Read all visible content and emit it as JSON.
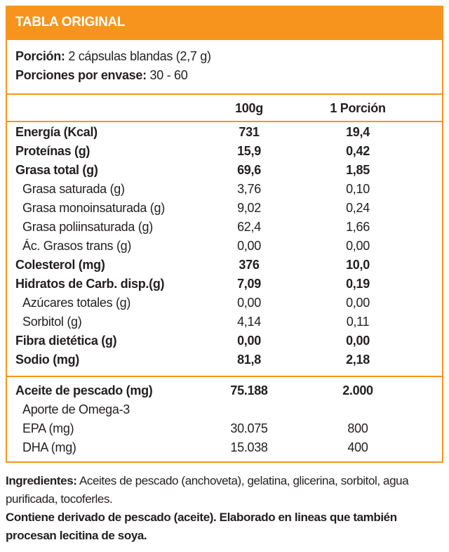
{
  "header": {
    "title": "TABLA ORIGINAL"
  },
  "portion": {
    "label": "Porción:",
    "value": "2 cápsulas blandas (2,7 g)"
  },
  "servings": {
    "label": "Porciones por envase:",
    "value": "30 - 60"
  },
  "table": {
    "columns": [
      "100g",
      "1 Porción"
    ],
    "rows": [
      [
        "Energía (Kcal)",
        "731",
        "19,4"
      ],
      [
        "Proteínas (g)",
        "15,9",
        "0,42"
      ],
      [
        "Grasa total (g)",
        "69,6",
        "1,85"
      ],
      [
        "Grasa saturada (g)",
        "3,76",
        "0,10"
      ],
      [
        "Grasa monoinsaturada (g)",
        "9,02",
        "0,24"
      ],
      [
        "Grasa poliinsaturada (g)",
        "62,4",
        "1,66"
      ],
      [
        "Ác. Grasos trans (g)",
        "0,00",
        "0,00"
      ],
      [
        "Colesterol (mg)",
        "376",
        "10,0"
      ],
      [
        "Hidratos de Carb. disp.(g)",
        "7,09",
        "0,19"
      ],
      [
        "Azúcares totales (g)",
        "0,00",
        "0,00"
      ],
      [
        "Sorbitol (g)",
        "4,14",
        "0,11"
      ],
      [
        "Fibra dietética (g)",
        "0,00",
        "0,00"
      ],
      [
        "Sodio (mg)",
        "81,8",
        "2,18"
      ]
    ]
  },
  "extra": {
    "rows": [
      [
        "Aceite de pescado (mg)",
        "75.188",
        "2.000"
      ],
      [
        "Aporte de Omega-3"
      ],
      [
        "EPA (mg)",
        "30.075",
        "800"
      ],
      [
        "DHA (mg)",
        "15.038",
        "400"
      ]
    ]
  },
  "ingredients": {
    "label": "Ingredientes:",
    "text": "Aceites de pescado (anchoveta), gelatina, glicerina, sorbitol, agua purificada, tocoferles."
  },
  "warning": "Contiene derivado de pescado (aceite). Elaborado en lineas que también procesan lecitina de soya."
}
